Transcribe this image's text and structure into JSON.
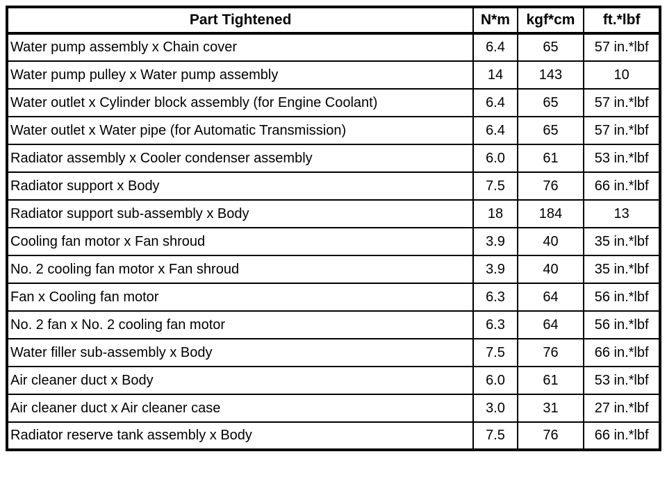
{
  "table": {
    "columns": [
      {
        "key": "part",
        "label": "Part Tightened"
      },
      {
        "key": "nm",
        "label": "N*m"
      },
      {
        "key": "kgfcm",
        "label": "kgf*cm"
      },
      {
        "key": "ftlbf",
        "label": "ft.*lbf"
      }
    ],
    "rows": [
      {
        "part": "Water pump assembly x Chain cover",
        "nm": "6.4",
        "kgfcm": "65",
        "ftlbf": "57 in.*lbf"
      },
      {
        "part": "Water pump pulley x Water pump assembly",
        "nm": "14",
        "kgfcm": "143",
        "ftlbf": "10"
      },
      {
        "part": "Water outlet x Cylinder block assembly (for Engine Coolant)",
        "nm": "6.4",
        "kgfcm": "65",
        "ftlbf": "57 in.*lbf"
      },
      {
        "part": "Water outlet x Water pipe (for Automatic Transmission)",
        "nm": "6.4",
        "kgfcm": "65",
        "ftlbf": "57 in.*lbf"
      },
      {
        "part": "Radiator assembly x Cooler condenser assembly",
        "nm": "6.0",
        "kgfcm": "61",
        "ftlbf": "53 in.*lbf"
      },
      {
        "part": "Radiator support x Body",
        "nm": "7.5",
        "kgfcm": "76",
        "ftlbf": "66 in.*lbf"
      },
      {
        "part": "Radiator support sub-assembly x Body",
        "nm": "18",
        "kgfcm": "184",
        "ftlbf": "13"
      },
      {
        "part": "Cooling fan motor x Fan shroud",
        "nm": "3.9",
        "kgfcm": "40",
        "ftlbf": "35 in.*lbf"
      },
      {
        "part": "No. 2 cooling fan motor x Fan shroud",
        "nm": "3.9",
        "kgfcm": "40",
        "ftlbf": "35 in.*lbf"
      },
      {
        "part": "Fan x Cooling fan motor",
        "nm": "6.3",
        "kgfcm": "64",
        "ftlbf": "56 in.*lbf"
      },
      {
        "part": "No. 2 fan x No. 2 cooling fan motor",
        "nm": "6.3",
        "kgfcm": "64",
        "ftlbf": "56 in.*lbf"
      },
      {
        "part": "Water filler sub-assembly x Body",
        "nm": "7.5",
        "kgfcm": "76",
        "ftlbf": "66 in.*lbf"
      },
      {
        "part": "Air cleaner duct x Body",
        "nm": "6.0",
        "kgfcm": "61",
        "ftlbf": "53 in.*lbf"
      },
      {
        "part": "Air cleaner duct x Air cleaner case",
        "nm": "3.0",
        "kgfcm": "31",
        "ftlbf": "27 in.*lbf"
      },
      {
        "part": "Radiator reserve tank assembly x Body",
        "nm": "7.5",
        "kgfcm": "76",
        "ftlbf": "66 in.*lbf"
      }
    ],
    "colors": {
      "border": "#000000",
      "text": "#000000",
      "background": "#ffffff"
    }
  }
}
